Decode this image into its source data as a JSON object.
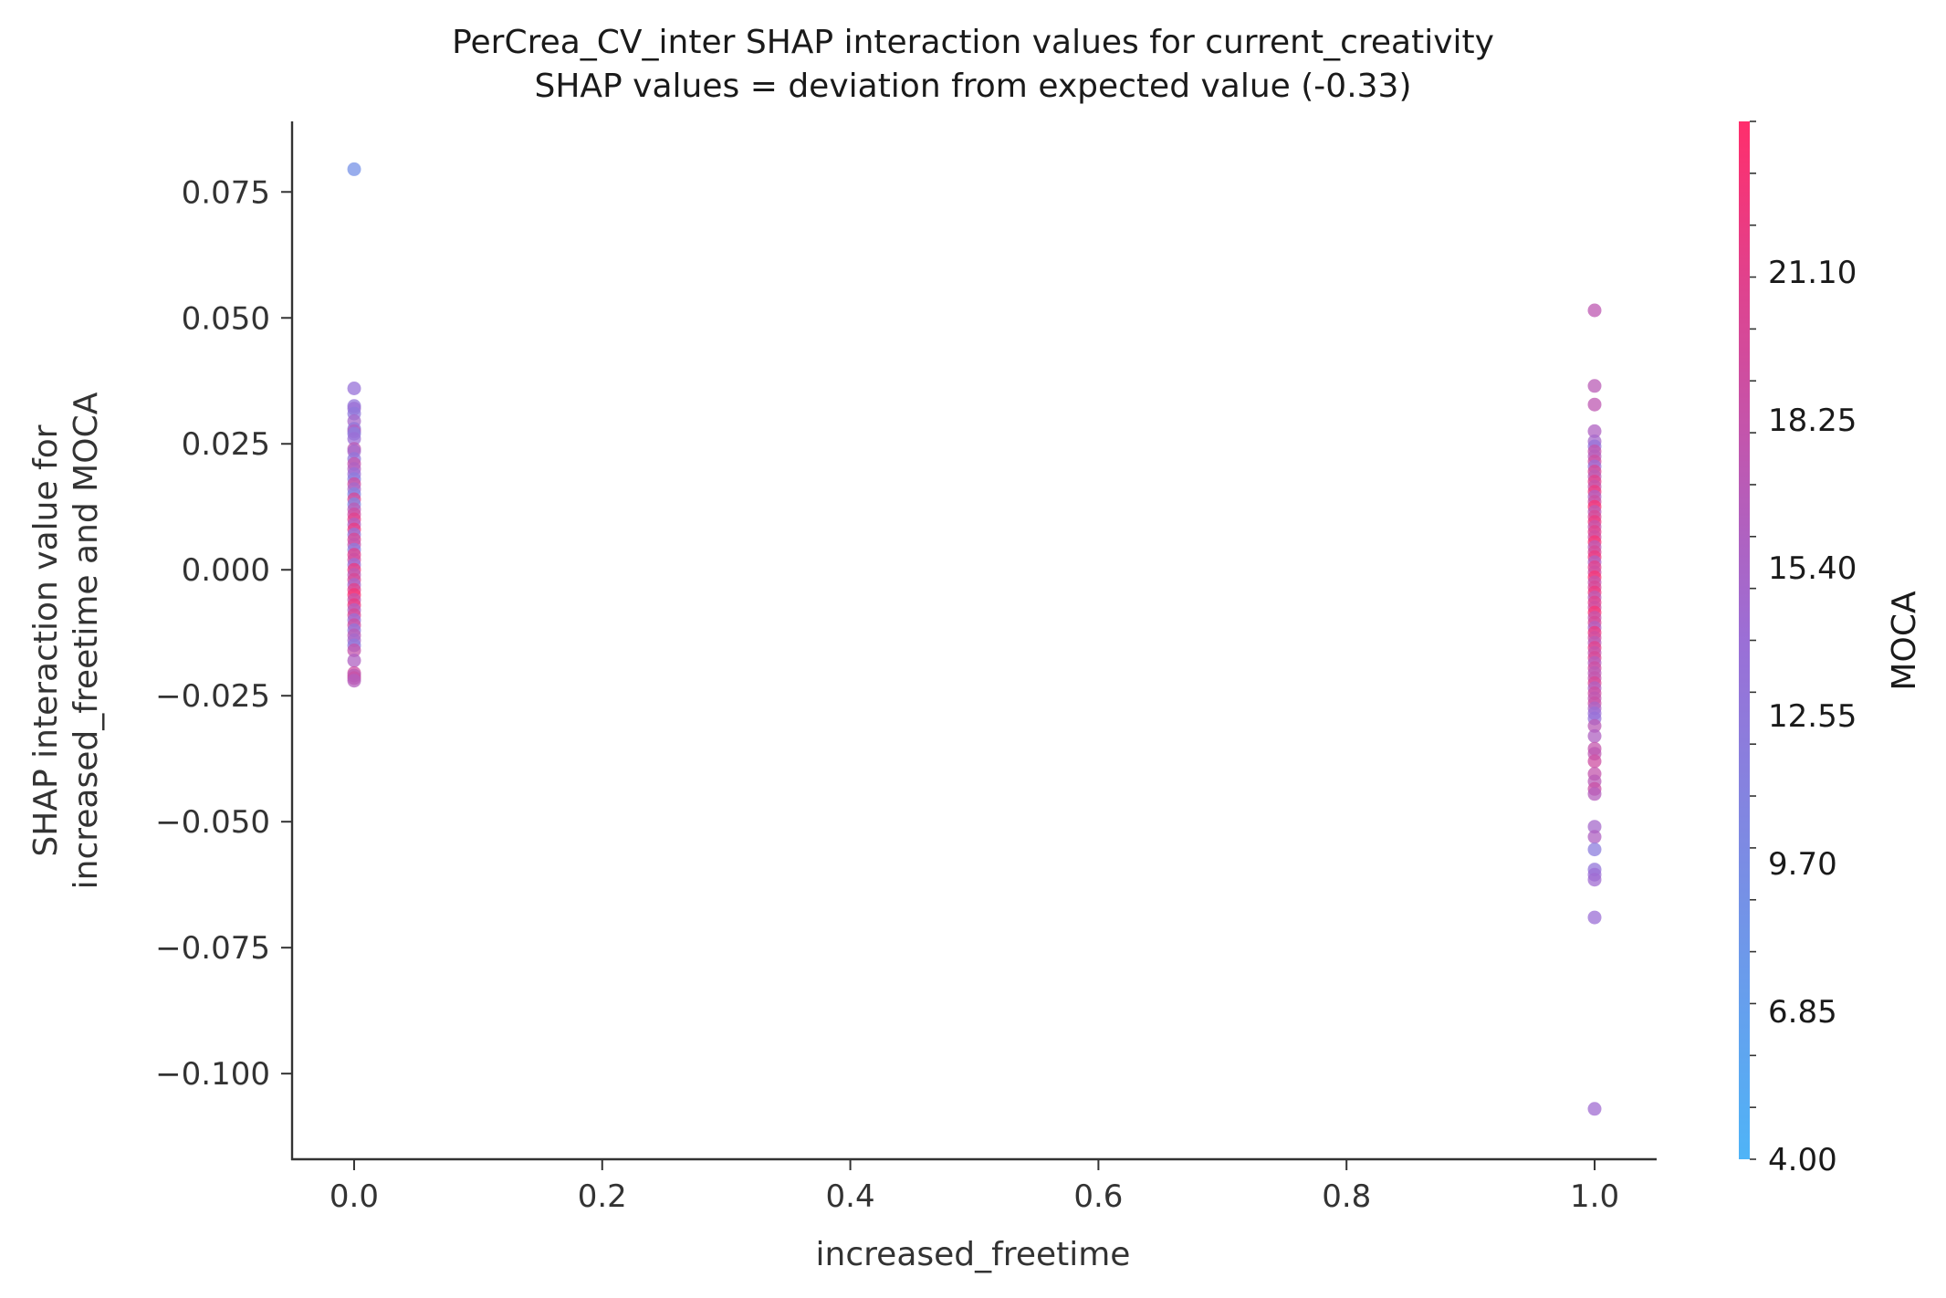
{
  "chart_data": {
    "type": "scatter",
    "title": "PerCrea_CV_inter SHAP interaction values for current_creativity",
    "subtitle": "SHAP values = deviation from expected value (-0.33)",
    "xlabel": "increased_freetime",
    "ylabel_line1": "SHAP interaction value for",
    "ylabel_line2": "increased_freetime and MOCA",
    "xlim": [
      -0.05,
      1.05
    ],
    "ylim": [
      -0.117,
      0.089
    ],
    "x_ticks": [
      0.0,
      0.2,
      0.4,
      0.6,
      0.8,
      1.0
    ],
    "x_tick_labels": [
      "0.0",
      "0.2",
      "0.4",
      "0.6",
      "0.8",
      "1.0"
    ],
    "y_ticks": [
      0.075,
      0.05,
      0.025,
      0.0,
      -0.025,
      -0.05,
      -0.075,
      -0.1
    ],
    "y_tick_labels": [
      "0.075",
      "0.050",
      "0.025",
      "0.000",
      "−0.025",
      "−0.050",
      "−0.075",
      "−0.100"
    ],
    "colorbar": {
      "label": "MOCA",
      "min": 4.0,
      "max": 24.0,
      "color_low": "#4fb4f7",
      "color_mid": "#9b6fd6",
      "color_high": "#ff2e6c",
      "ticks": [
        4.0,
        6.85,
        9.7,
        12.55,
        15.4,
        18.25,
        21.1
      ],
      "tick_labels": [
        "4.00",
        "6.85",
        "9.70",
        "12.55",
        "15.40",
        "18.25",
        "21.10"
      ]
    },
    "grid": false,
    "points": [
      [
        0,
        0.0795,
        9.0
      ],
      [
        0,
        0.036,
        13.5
      ],
      [
        0,
        0.0325,
        13.0
      ],
      [
        0,
        0.032,
        14.0
      ],
      [
        0,
        0.031,
        12.5
      ],
      [
        0,
        0.0295,
        15.0
      ],
      [
        0,
        0.028,
        13.0
      ],
      [
        0,
        0.0275,
        16.0
      ],
      [
        0,
        0.027,
        12.0
      ],
      [
        0,
        0.026,
        14.0
      ],
      [
        0,
        0.024,
        17.0
      ],
      [
        0,
        0.0235,
        15.0
      ],
      [
        0,
        0.022,
        13.0
      ],
      [
        0,
        0.021,
        18.0
      ],
      [
        0,
        0.02,
        16.0
      ],
      [
        0,
        0.019,
        14.0
      ],
      [
        0,
        0.018,
        12.0
      ],
      [
        0,
        0.017,
        19.0
      ],
      [
        0,
        0.016,
        15.0
      ],
      [
        0,
        0.015,
        11.0
      ],
      [
        0,
        0.014,
        20.0
      ],
      [
        0,
        0.013,
        10.5
      ],
      [
        0,
        0.012,
        17.0
      ],
      [
        0,
        0.011,
        19.0
      ],
      [
        0,
        0.01,
        21.0
      ],
      [
        0,
        0.009,
        16.0
      ],
      [
        0,
        0.008,
        22.0
      ],
      [
        0,
        0.007,
        13.0
      ],
      [
        0,
        0.006,
        20.0
      ],
      [
        0,
        0.005,
        18.0
      ],
      [
        0,
        0.004,
        12.0
      ],
      [
        0,
        0.003,
        21.0
      ],
      [
        0,
        0.002,
        19.0
      ],
      [
        0,
        0.001,
        14.0
      ],
      [
        0,
        0.0,
        22.0
      ],
      [
        0,
        -0.001,
        17.0
      ],
      [
        0,
        -0.002,
        20.0
      ],
      [
        0,
        -0.003,
        15.0
      ],
      [
        0,
        -0.004,
        21.0
      ],
      [
        0,
        -0.005,
        23.0
      ],
      [
        0,
        -0.006,
        18.0
      ],
      [
        0,
        -0.007,
        22.0
      ],
      [
        0,
        -0.008,
        16.0
      ],
      [
        0,
        -0.009,
        20.0
      ],
      [
        0,
        -0.01,
        14.0
      ],
      [
        0,
        -0.011,
        19.0
      ],
      [
        0,
        -0.012,
        13.0
      ],
      [
        0,
        -0.013,
        17.0
      ],
      [
        0,
        -0.014,
        15.0
      ],
      [
        0,
        -0.015,
        12.5
      ],
      [
        0,
        -0.016,
        18.0
      ],
      [
        0,
        -0.018,
        16.0
      ],
      [
        0,
        -0.0205,
        19.0
      ],
      [
        0,
        -0.021,
        17.0
      ],
      [
        0,
        -0.0215,
        18.5
      ],
      [
        0,
        -0.022,
        16.5
      ],
      [
        1,
        0.0515,
        17.5
      ],
      [
        1,
        0.0365,
        17.0
      ],
      [
        1,
        0.0328,
        17.5
      ],
      [
        1,
        0.0275,
        16.0
      ],
      [
        1,
        0.0255,
        15.0
      ],
      [
        1,
        0.0245,
        13.5
      ],
      [
        1,
        0.0235,
        18.0
      ],
      [
        1,
        0.0225,
        16.5
      ],
      [
        1,
        0.0215,
        19.0
      ],
      [
        1,
        0.0205,
        14.0
      ],
      [
        1,
        0.0195,
        20.0
      ],
      [
        1,
        0.0185,
        17.0
      ],
      [
        1,
        0.0175,
        21.0
      ],
      [
        1,
        0.0165,
        18.0
      ],
      [
        1,
        0.0155,
        22.0
      ],
      [
        1,
        0.0145,
        16.0
      ],
      [
        1,
        0.0135,
        19.0
      ],
      [
        1,
        0.0125,
        23.0
      ],
      [
        1,
        0.0115,
        17.0
      ],
      [
        1,
        0.0105,
        20.0
      ],
      [
        1,
        0.0095,
        22.0
      ],
      [
        1,
        0.0085,
        18.0
      ],
      [
        1,
        0.0075,
        21.0
      ],
      [
        1,
        0.0065,
        19.0
      ],
      [
        1,
        0.0055,
        23.0
      ],
      [
        1,
        0.0045,
        17.0
      ],
      [
        1,
        0.0035,
        20.0
      ],
      [
        1,
        0.0025,
        22.0
      ],
      [
        1,
        0.0015,
        16.0
      ],
      [
        1,
        0.0005,
        21.0
      ],
      [
        1,
        -0.0005,
        19.0
      ],
      [
        1,
        -0.0015,
        23.0
      ],
      [
        1,
        -0.0025,
        18.0
      ],
      [
        1,
        -0.0035,
        20.0
      ],
      [
        1,
        -0.0045,
        22.0
      ],
      [
        1,
        -0.0055,
        17.0
      ],
      [
        1,
        -0.0065,
        21.0
      ],
      [
        1,
        -0.0075,
        19.0
      ],
      [
        1,
        -0.0085,
        23.0
      ],
      [
        1,
        -0.0095,
        18.0
      ],
      [
        1,
        -0.0105,
        20.0
      ],
      [
        1,
        -0.0115,
        16.0
      ],
      [
        1,
        -0.0125,
        22.0
      ],
      [
        1,
        -0.0135,
        19.0
      ],
      [
        1,
        -0.0145,
        17.0
      ],
      [
        1,
        -0.0155,
        21.0
      ],
      [
        1,
        -0.0165,
        18.0
      ],
      [
        1,
        -0.0175,
        20.0
      ],
      [
        1,
        -0.0185,
        16.5
      ],
      [
        1,
        -0.0195,
        19.0
      ],
      [
        1,
        -0.0205,
        17.0
      ],
      [
        1,
        -0.0215,
        18.0
      ],
      [
        1,
        -0.0225,
        20.0
      ],
      [
        1,
        -0.0235,
        16.0
      ],
      [
        1,
        -0.0245,
        19.0
      ],
      [
        1,
        -0.0255,
        17.5
      ],
      [
        1,
        -0.0265,
        18.5
      ],
      [
        1,
        -0.0275,
        15.5
      ],
      [
        1,
        -0.0285,
        14.0
      ],
      [
        1,
        -0.0295,
        13.5
      ],
      [
        1,
        -0.031,
        17.0
      ],
      [
        1,
        -0.033,
        16.0
      ],
      [
        1,
        -0.0355,
        18.0
      ],
      [
        1,
        -0.0365,
        17.5
      ],
      [
        1,
        -0.038,
        19.0
      ],
      [
        1,
        -0.0405,
        18.0
      ],
      [
        1,
        -0.042,
        17.0
      ],
      [
        1,
        -0.0435,
        18.5
      ],
      [
        1,
        -0.0445,
        16.5
      ],
      [
        1,
        -0.051,
        15.0
      ],
      [
        1,
        -0.053,
        16.0
      ],
      [
        1,
        -0.0555,
        12.0
      ],
      [
        1,
        -0.0595,
        13.0
      ],
      [
        1,
        -0.0605,
        14.0
      ],
      [
        1,
        -0.0615,
        14.5
      ],
      [
        1,
        -0.069,
        14.0
      ],
      [
        1,
        -0.107,
        14.5
      ]
    ]
  }
}
